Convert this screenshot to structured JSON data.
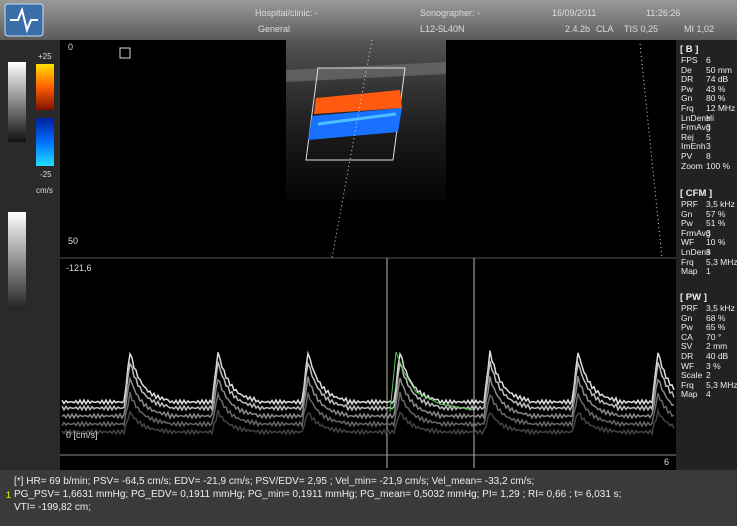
{
  "header": {
    "hospital": "Hospital/clinic: -",
    "sonographer": "Sonographer: -",
    "date": "16/09/2011",
    "time": "11:26:26",
    "preset": "General",
    "probe": "L12-5L40N",
    "version": "2.4.2b",
    "mode": "CLA",
    "tis": "TIS 0,25",
    "mi": "MI 1,02"
  },
  "color_scale": {
    "max": "+25",
    "min": "-25",
    "unit": "cm/s"
  },
  "image": {
    "depth_top": "0",
    "depth_bottom": "50",
    "velocity_top": "-121,6",
    "baseline": "0 [cm/s]",
    "time_marker": "6"
  },
  "params": [
    {
      "title": "[ B ]",
      "rows": [
        [
          "FPS",
          "6"
        ],
        [
          "De",
          "50 mm"
        ],
        [
          "DR",
          "74 dB"
        ],
        [
          "Pw",
          "43 %"
        ],
        [
          "Gn",
          "80 %"
        ],
        [
          "Frq",
          "12 MHz"
        ],
        [
          "LnDens",
          "Hi"
        ],
        [
          "FrmAvg",
          "3"
        ],
        [
          "Rej",
          "5"
        ],
        [
          "ImEnh",
          "3"
        ],
        [
          "PV",
          "8"
        ],
        [
          "Zoom",
          "100 %"
        ]
      ]
    },
    {
      "title": "[ CFM ]",
      "rows": [
        [
          "PRF",
          "3,5 kHz"
        ],
        [
          "Gn",
          "57 %"
        ],
        [
          "Pw",
          "51 %"
        ],
        [
          "FrmAvg",
          "3"
        ],
        [
          "WF",
          "10 %"
        ],
        [
          "LnDens",
          "3"
        ],
        [
          "Frq",
          "5,3 MHz"
        ],
        [
          "Map",
          "1"
        ]
      ]
    },
    {
      "title": "[ PW ]",
      "rows": [
        [
          "PRF",
          "3,5 kHz"
        ],
        [
          "Gn",
          "68 %"
        ],
        [
          "Pw",
          "65 %"
        ],
        [
          "CA",
          "70 °"
        ],
        [
          "SV",
          "2 mm"
        ],
        [
          "DR",
          "40 dB"
        ],
        [
          "WF",
          "3 %"
        ],
        [
          "Scale",
          "2"
        ],
        [
          "Frq",
          "5,3 MHz"
        ],
        [
          "Map",
          "4"
        ]
      ]
    }
  ],
  "measurements": {
    "marker": "1",
    "lines": [
      "[*] HR= 69 b/min; PSV= -64,5 cm/s; EDV= -21,9 cm/s; PSV/EDV= 2,95 ; Vel_min= -21,9 cm/s; Vel_mean= -33,2 cm/s;",
      "PG_PSV= 1,6631 mmHg; PG_EDV= 0,1911 mmHg; PG_min= 0,1911 mmHg; PG_mean= 0,5032 mmHg; PI= 1,29 ; RI= 0,66 ; t= 6,031 s;",
      "VTI= -199,82 cm;"
    ]
  }
}
